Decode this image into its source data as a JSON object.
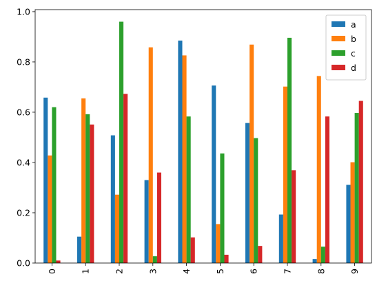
{
  "chart_data": {
    "type": "bar",
    "categories": [
      "0",
      "1",
      "2",
      "3",
      "4",
      "5",
      "6",
      "7",
      "8",
      "9"
    ],
    "series": [
      {
        "name": "a",
        "color": "#1f77b4",
        "values": [
          0.658,
          0.105,
          0.508,
          0.33,
          0.885,
          0.706,
          0.557,
          0.193,
          0.016,
          0.311
        ]
      },
      {
        "name": "b",
        "color": "#ff7f0e",
        "values": [
          0.428,
          0.655,
          0.272,
          0.858,
          0.826,
          0.155,
          0.869,
          0.702,
          0.744,
          0.401
        ]
      },
      {
        "name": "c",
        "color": "#2ca02c",
        "values": [
          0.62,
          0.592,
          0.96,
          0.027,
          0.583,
          0.436,
          0.497,
          0.896,
          0.065,
          0.597
        ]
      },
      {
        "name": "d",
        "color": "#d62728",
        "values": [
          0.01,
          0.551,
          0.673,
          0.36,
          0.102,
          0.033,
          0.068,
          0.369,
          0.583,
          0.645
        ]
      }
    ],
    "yticks": [
      "0.0",
      "0.2",
      "0.4",
      "0.6",
      "0.8",
      "1.0"
    ],
    "ylim": [
      0,
      1.008
    ],
    "xtick_rotation": "vertical",
    "legend_position": "upper-right",
    "grid": false,
    "title": "",
    "xlabel": "",
    "ylabel": ""
  }
}
